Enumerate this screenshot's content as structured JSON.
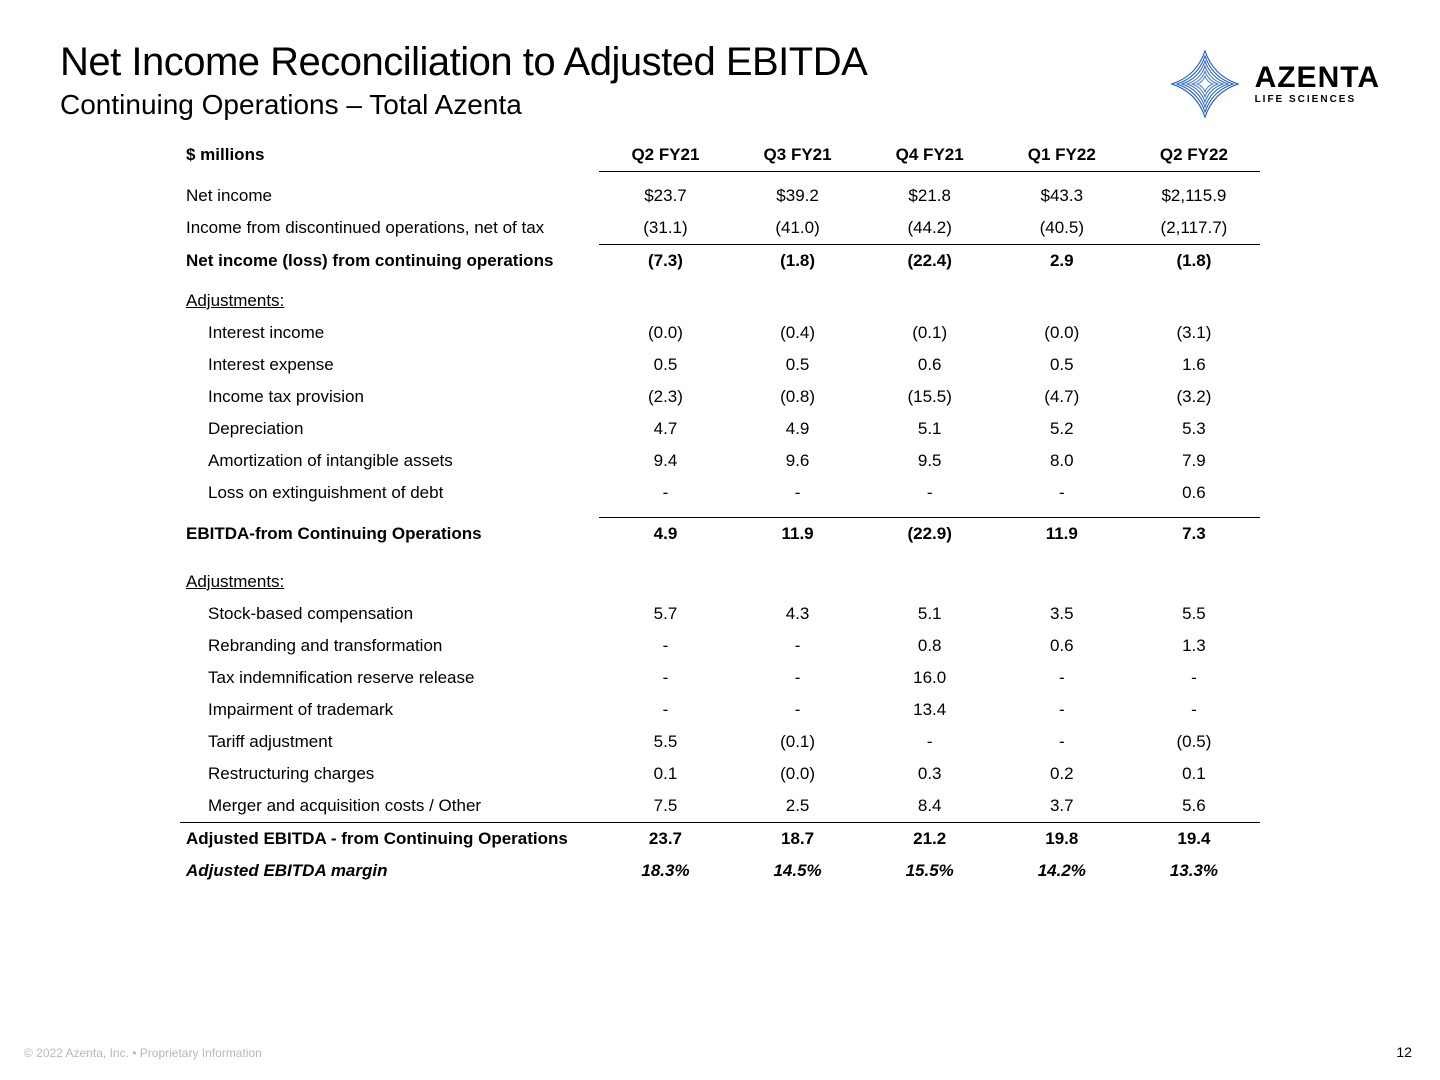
{
  "title": "Net Income Reconciliation to Adjusted EBITDA",
  "subtitle": "Continuing Operations – Total Azenta",
  "logo": {
    "text": "AZENTA",
    "tag": "LIFE SCIENCES",
    "stroke": "#0a4cc3",
    "fill_light": "#cfe0ff"
  },
  "footer": "© 2022 Azenta, Inc. • Proprietary Information",
  "page": "12",
  "table": {
    "header_label": "$ millions",
    "columns": [
      "Q2 FY21",
      "Q3 FY21",
      "Q4 FY21",
      "Q1 FY22",
      "Q2 FY22"
    ],
    "rows": [
      {
        "label": "Net income",
        "vals": [
          "$23.7",
          "$39.2",
          "$21.8",
          "$43.3",
          "$2,115.9"
        ]
      },
      {
        "label": "Income from discontinued operations, net of tax",
        "vals": [
          "(31.1)",
          "(41.0)",
          "(44.2)",
          "(40.5)",
          "(2,117.7)"
        ]
      },
      {
        "label": "Net income (loss)  from continuing operations",
        "vals": [
          "(7.3)",
          "(1.8)",
          "(22.4)",
          "2.9",
          "(1.8)"
        ],
        "bold": true,
        "topline": true
      },
      {
        "section": "Adjustments:"
      },
      {
        "label": "Interest income",
        "indent": 1,
        "vals": [
          "(0.0)",
          "(0.4)",
          "(0.1)",
          "(0.0)",
          "(3.1)"
        ]
      },
      {
        "label": "Interest expense",
        "indent": 1,
        "vals": [
          "0.5",
          "0.5",
          "0.6",
          "0.5",
          "1.6"
        ]
      },
      {
        "label": "Income tax provision",
        "indent": 1,
        "vals": [
          "(2.3)",
          "(0.8)",
          "(15.5)",
          "(4.7)",
          "(3.2)"
        ]
      },
      {
        "label": "Depreciation",
        "indent": 1,
        "vals": [
          "4.7",
          "4.9",
          "5.1",
          "5.2",
          "5.3"
        ]
      },
      {
        "label": "Amortization of intangible assets",
        "indent": 1,
        "vals": [
          "9.4",
          "9.6",
          "9.5",
          "8.0",
          "7.9"
        ]
      },
      {
        "label": "Loss on extinguishment of debt",
        "indent": 1,
        "vals": [
          "-",
          "-",
          "-",
          "-",
          "0.6"
        ]
      },
      {
        "label": "EBITDA-from Continuing Operations",
        "vals": [
          "4.9",
          "11.9",
          "(22.9)",
          "11.9",
          "7.3"
        ],
        "bold": true,
        "dbl": true
      },
      {
        "section": "Adjustments:"
      },
      {
        "label": "Stock-based compensation",
        "indent": 1,
        "vals": [
          "5.7",
          "4.3",
          "5.1",
          "3.5",
          "5.5"
        ]
      },
      {
        "label": "Rebranding and transformation",
        "indent": 1,
        "vals": [
          "-",
          "-",
          "0.8",
          "0.6",
          "1.3"
        ]
      },
      {
        "label": "Tax indemnification reserve release",
        "indent": 1,
        "vals": [
          "-",
          "-",
          "16.0",
          "-",
          "-"
        ]
      },
      {
        "label": "Impairment of trademark",
        "indent": 1,
        "vals": [
          "-",
          "-",
          "13.4",
          "-",
          "-"
        ]
      },
      {
        "label": "Tariff adjustment",
        "indent": 1,
        "vals": [
          "5.5",
          "(0.1)",
          "-",
          "-",
          "(0.5)"
        ]
      },
      {
        "label": "Restructuring charges",
        "indent": 1,
        "vals": [
          "0.1",
          "(0.0)",
          "0.3",
          "0.2",
          "0.1"
        ]
      },
      {
        "label": "Merger and acquisition costs / Other",
        "indent": 1,
        "vals": [
          "7.5",
          "2.5",
          "8.4",
          "3.7",
          "5.6"
        ]
      },
      {
        "label": "Adjusted EBITDA - from Continuing Operations",
        "vals": [
          "23.7",
          "18.7",
          "21.2",
          "19.8",
          "19.4"
        ],
        "bold": true,
        "topline_all": true
      },
      {
        "label": "Adjusted EBITDA margin",
        "vals": [
          "18.3%",
          "14.5%",
          "15.5%",
          "14.2%",
          "13.3%"
        ],
        "italic": true
      }
    ]
  }
}
